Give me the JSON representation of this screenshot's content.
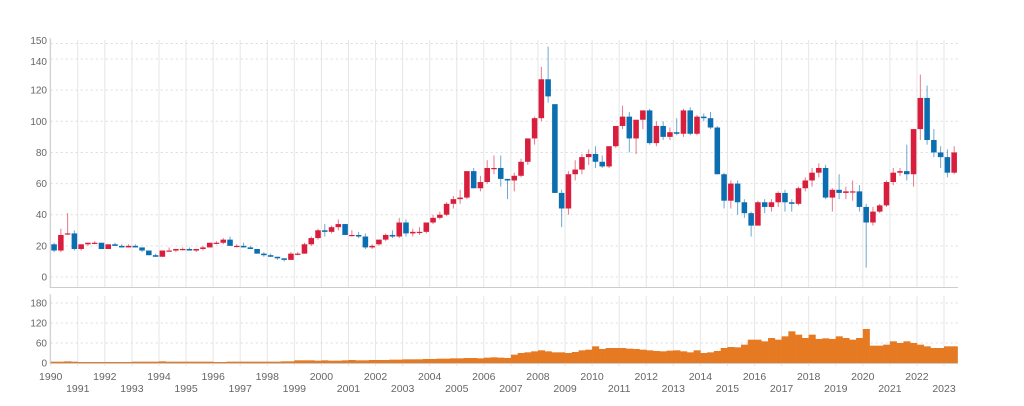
{
  "chart_data": {
    "type": "candlestick",
    "title": "",
    "xlabel": "",
    "ylabel": "",
    "frequency": "quarterly",
    "start": "1990 Q1",
    "colors": {
      "up": "#d81e3c",
      "down": "#0b6eb1",
      "volume": "#e67a22",
      "grid": "#e6e6e6"
    },
    "price_axis": {
      "ylim": [
        -6,
        152
      ],
      "ticks": [
        0,
        20,
        40,
        60,
        80,
        100,
        120,
        140,
        150
      ]
    },
    "volume_axis": {
      "ylim": [
        0,
        195
      ],
      "ticks": [
        0,
        60,
        120,
        180
      ]
    },
    "years": [
      1990,
      1991,
      1992,
      1993,
      1994,
      1995,
      1996,
      1997,
      1998,
      1999,
      2000,
      2001,
      2002,
      2003,
      2004,
      2005,
      2006,
      2007,
      2008,
      2009,
      2010,
      2011,
      2012,
      2013,
      2014,
      2015,
      2016,
      2017,
      2018,
      2019,
      2020,
      2021,
      2022,
      2023
    ],
    "ohlc_columns": [
      "open",
      "high",
      "low",
      "close"
    ],
    "ohlc": [
      [
        21,
        22,
        16,
        17
      ],
      [
        17,
        31,
        16,
        27
      ],
      [
        28,
        41,
        27,
        28
      ],
      [
        28,
        30,
        17,
        18
      ],
      [
        18,
        21,
        17,
        21
      ],
      [
        21,
        22,
        20,
        22
      ],
      [
        22,
        23,
        21,
        22
      ],
      [
        22,
        22,
        18,
        18
      ],
      [
        18,
        21,
        18,
        21
      ],
      [
        21,
        22,
        20,
        20
      ],
      [
        20,
        21,
        19,
        19
      ],
      [
        19,
        21,
        19,
        20
      ],
      [
        20,
        21,
        19,
        19
      ],
      [
        19,
        19,
        16,
        17
      ],
      [
        17,
        17,
        14,
        14
      ],
      [
        14,
        15,
        13,
        13
      ],
      [
        13,
        17,
        13,
        17
      ],
      [
        17,
        19,
        17,
        17
      ],
      [
        17,
        18,
        16,
        18
      ],
      [
        18,
        19,
        17,
        18
      ],
      [
        18,
        19,
        17,
        17
      ],
      [
        17,
        18,
        16,
        18
      ],
      [
        18,
        20,
        17,
        19
      ],
      [
        19,
        22,
        19,
        22
      ],
      [
        22,
        23,
        21,
        22
      ],
      [
        22,
        25,
        21,
        24
      ],
      [
        24,
        26,
        20,
        20
      ],
      [
        20,
        21,
        19,
        20
      ],
      [
        20,
        22,
        19,
        19
      ],
      [
        19,
        20,
        18,
        18
      ],
      [
        18,
        18,
        15,
        15
      ],
      [
        15,
        16,
        13,
        14
      ],
      [
        14,
        15,
        13,
        13
      ],
      [
        13,
        13,
        11,
        12
      ],
      [
        12,
        12,
        10,
        11
      ],
      [
        11,
        16,
        11,
        15
      ],
      [
        15,
        16,
        14,
        15
      ],
      [
        15,
        22,
        15,
        21
      ],
      [
        21,
        26,
        20,
        25
      ],
      [
        25,
        31,
        24,
        30
      ],
      [
        30,
        34,
        26,
        29
      ],
      [
        29,
        33,
        28,
        32
      ],
      [
        32,
        37,
        30,
        34
      ],
      [
        34,
        34,
        27,
        27
      ],
      [
        27,
        30,
        26,
        27
      ],
      [
        27,
        29,
        25,
        26
      ],
      [
        26,
        28,
        18,
        19
      ],
      [
        19,
        21,
        18,
        20
      ],
      [
        21,
        24,
        20,
        24
      ],
      [
        24,
        28,
        23,
        27
      ],
      [
        27,
        30,
        25,
        26
      ],
      [
        26,
        38,
        25,
        35
      ],
      [
        35,
        37,
        26,
        28
      ],
      [
        28,
        31,
        26,
        29
      ],
      [
        29,
        32,
        27,
        29
      ],
      [
        29,
        35,
        28,
        35
      ],
      [
        35,
        40,
        34,
        38
      ],
      [
        38,
        42,
        37,
        40
      ],
      [
        40,
        48,
        39,
        47
      ],
      [
        47,
        52,
        44,
        50
      ],
      [
        50,
        56,
        47,
        51
      ],
      [
        51,
        68,
        50,
        68
      ],
      [
        68,
        70,
        57,
        57
      ],
      [
        57,
        65,
        55,
        61
      ],
      [
        61,
        75,
        60,
        70
      ],
      [
        70,
        78,
        66,
        70
      ],
      [
        70,
        78,
        58,
        63
      ],
      [
        63,
        63,
        50,
        62
      ],
      [
        62,
        67,
        55,
        65
      ],
      [
        65,
        76,
        64,
        74
      ],
      [
        74,
        89,
        72,
        89
      ],
      [
        89,
        103,
        85,
        102
      ],
      [
        102,
        135,
        100,
        127
      ],
      [
        127,
        148,
        112,
        116
      ],
      [
        111,
        111,
        54,
        54
      ],
      [
        54,
        56,
        32,
        44
      ],
      [
        44,
        68,
        40,
        66
      ],
      [
        66,
        75,
        62,
        69
      ],
      [
        69,
        79,
        66,
        77
      ],
      [
        77,
        82,
        72,
        79
      ],
      [
        79,
        84,
        70,
        74
      ],
      [
        74,
        78,
        70,
        71
      ],
      [
        71,
        84,
        70,
        84
      ],
      [
        84,
        97,
        83,
        97
      ],
      [
        97,
        110,
        95,
        103
      ],
      [
        103,
        106,
        80,
        89
      ],
      [
        89,
        101,
        79,
        101
      ],
      [
        101,
        107,
        95,
        107
      ],
      [
        107,
        108,
        85,
        86
      ],
      [
        86,
        100,
        84,
        97
      ],
      [
        97,
        100,
        88,
        90
      ],
      [
        90,
        96,
        88,
        93
      ],
      [
        93,
        102,
        91,
        92
      ],
      [
        92,
        108,
        90,
        107
      ],
      [
        107,
        109,
        91,
        92
      ],
      [
        92,
        104,
        91,
        103
      ],
      [
        103,
        105,
        100,
        102
      ],
      [
        102,
        106,
        95,
        96
      ],
      [
        96,
        97,
        66,
        66
      ],
      [
        66,
        67,
        44,
        49
      ],
      [
        49,
        62,
        44,
        60
      ],
      [
        60,
        62,
        40,
        48
      ],
      [
        48,
        50,
        38,
        41
      ],
      [
        41,
        42,
        26,
        33
      ],
      [
        33,
        49,
        33,
        48
      ],
      [
        48,
        50,
        41,
        45
      ],
      [
        45,
        50,
        42,
        48
      ],
      [
        48,
        55,
        45,
        54
      ],
      [
        54,
        56,
        42,
        48
      ],
      [
        48,
        50,
        42,
        47
      ],
      [
        47,
        58,
        46,
        57
      ],
      [
        57,
        64,
        55,
        62
      ],
      [
        62,
        70,
        58,
        67
      ],
      [
        67,
        73,
        64,
        70
      ],
      [
        70,
        72,
        50,
        51
      ],
      [
        51,
        57,
        42,
        56
      ],
      [
        56,
        66,
        50,
        54
      ],
      [
        54,
        58,
        50,
        55
      ],
      [
        55,
        62,
        49,
        55
      ],
      [
        55,
        59,
        42,
        45
      ],
      [
        45,
        47,
        6,
        35
      ],
      [
        35,
        45,
        33,
        42
      ],
      [
        42,
        47,
        41,
        46
      ],
      [
        46,
        62,
        45,
        61
      ],
      [
        61,
        70,
        59,
        67
      ],
      [
        67,
        70,
        65,
        68
      ],
      [
        68,
        85,
        62,
        66
      ],
      [
        66,
        95,
        58,
        95
      ],
      [
        95,
        130,
        88,
        115
      ],
      [
        115,
        123,
        85,
        88
      ],
      [
        88,
        95,
        77,
        80
      ],
      [
        80,
        84,
        70,
        77
      ],
      [
        77,
        82,
        64,
        67
      ],
      [
        67,
        84,
        66,
        80
      ]
    ],
    "volume": [
      4,
      4,
      5,
      4,
      3,
      3,
      3,
      3,
      3,
      3,
      3,
      3,
      4,
      4,
      4,
      4,
      5,
      4,
      4,
      4,
      4,
      4,
      4,
      4,
      3,
      3,
      4,
      4,
      4,
      4,
      4,
      4,
      4,
      4,
      5,
      5,
      8,
      8,
      8,
      7,
      8,
      7,
      7,
      8,
      9,
      8,
      8,
      9,
      9,
      9,
      10,
      10,
      11,
      11,
      11,
      12,
      12,
      13,
      13,
      14,
      14,
      15,
      15,
      14,
      16,
      17,
      16,
      15,
      25,
      30,
      32,
      35,
      38,
      35,
      32,
      32,
      30,
      33,
      38,
      40,
      50,
      42,
      45,
      45,
      45,
      43,
      42,
      40,
      38,
      36,
      35,
      37,
      38,
      35,
      32,
      38,
      30,
      32,
      36,
      45,
      48,
      47,
      55,
      70,
      70,
      65,
      75,
      70,
      80,
      95,
      85,
      75,
      85,
      72,
      74,
      72,
      80,
      75,
      70,
      75,
      102,
      52,
      52,
      55,
      65,
      60,
      65,
      60,
      55,
      50,
      45,
      45,
      50,
      50
    ]
  }
}
